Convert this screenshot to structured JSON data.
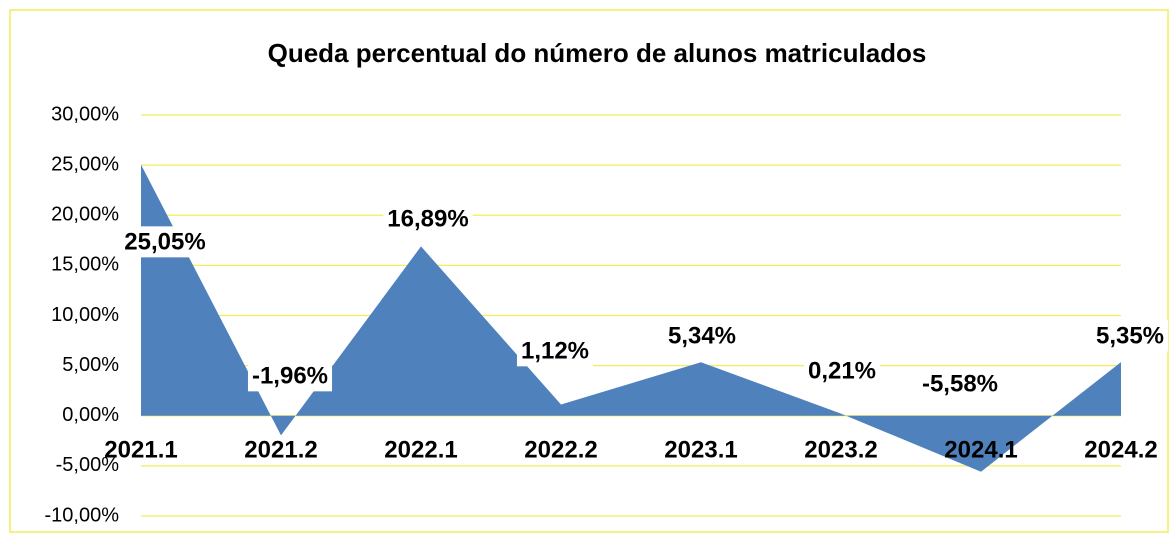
{
  "chart_data": {
    "type": "area",
    "title": "Queda percentual do número de alunos matriculados",
    "categories": [
      "2021.1",
      "2021.2",
      "2022.1",
      "2022.2",
      "2023.1",
      "2023.2",
      "2024.1",
      "2024.2"
    ],
    "values": [
      25.05,
      -1.96,
      16.89,
      1.12,
      5.34,
      0.21,
      -5.58,
      5.35
    ],
    "value_labels": [
      "25,05%",
      "-1,96%",
      "16,89%",
      "1,12%",
      "5,34%",
      "0,21%",
      "-5,58%",
      "5,35%"
    ],
    "color": "#4f81bd",
    "ylim": [
      -10,
      30
    ],
    "yticks": [
      {
        "value": -10,
        "label": "-10,00%"
      },
      {
        "value": -5,
        "label": "-5,00%"
      },
      {
        "value": 0,
        "label": "0,00%"
      },
      {
        "value": 5,
        "label": "5,00%"
      },
      {
        "value": 10,
        "label": "10,00%"
      },
      {
        "value": 15,
        "label": "15,00%"
      },
      {
        "value": 20,
        "label": "20,00%"
      },
      {
        "value": 25,
        "label": "25,00%"
      },
      {
        "value": 30,
        "label": "30,00%"
      }
    ],
    "grid": true
  }
}
